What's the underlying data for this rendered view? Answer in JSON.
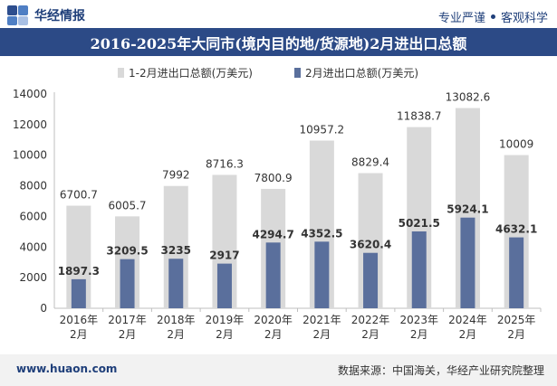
{
  "header": {
    "brand": "华经情报",
    "slogan_left": "专业严谨",
    "slogan_right": "客观科学"
  },
  "footer": {
    "website": "www.huaon.com",
    "source": "数据来源：中国海关，华经产业研究院整理"
  },
  "colors": {
    "title_bg": "#2c4a86",
    "series1": "#d9d9d9",
    "series2": "#5a6f9c"
  },
  "chart_data": {
    "type": "bar",
    "title": "2016-2025年大同市(境内目的地/货源地)2月进出口总额",
    "categories": [
      "2016年\n2月",
      "2017年\n2月",
      "2018年\n2月",
      "2019年\n2月",
      "2020年\n2月",
      "2021年\n2月",
      "2022年\n2月",
      "2023年\n2月",
      "2024年\n2月",
      "2025年\n2月"
    ],
    "series": [
      {
        "name": "1-2月进出口总额(万美元)",
        "values": [
          6700.7,
          6005.7,
          7992,
          8716.3,
          7800.9,
          10957.2,
          8829.4,
          11838.7,
          13082.6,
          10009
        ],
        "labels": [
          "6700.7",
          "6005.7",
          "7992",
          "8716.3",
          "7800.9",
          "10957.2",
          "8829.4",
          "11838.7",
          "13082.6",
          "10009"
        ]
      },
      {
        "name": "2月进出口总额(万美元)",
        "values": [
          1897.3,
          3209.5,
          3235,
          2917,
          4294.7,
          4352.5,
          3620.4,
          5021.5,
          5924.1,
          4632.1
        ],
        "labels": [
          "1897.3",
          "3209.5",
          "3235",
          "2917",
          "4294.7",
          "4352.5",
          "3620.4",
          "5021.5",
          "5924.1",
          "4632.1"
        ]
      }
    ],
    "yticks": [
      0,
      2000,
      4000,
      6000,
      8000,
      10000,
      12000,
      14000
    ],
    "ylim": [
      0,
      14000
    ],
    "legend": "top-center",
    "grid": false
  }
}
